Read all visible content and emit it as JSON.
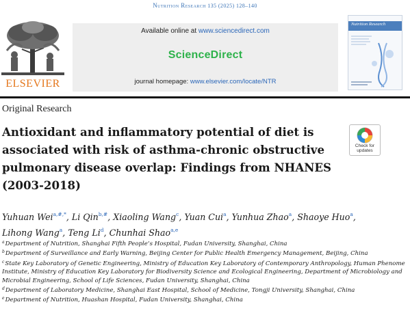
{
  "journal": {
    "name": "Nutrition Research",
    "citation": "135 (2025) 128–140"
  },
  "header": {
    "publisher_logo_text": "ELSEVIER",
    "available_online_prefix": "Available online at ",
    "available_online_link": "www.sciencedirect.com",
    "platform_logo_text": "ScienceDirect",
    "homepage_prefix": "journal homepage: ",
    "homepage_link": "www.elsevier.com/locate/NTR",
    "cover_title": "Nutrition Research"
  },
  "article": {
    "type": "Original Research",
    "title": "Antioxidant and inflammatory potential of diet is associated with risk of asthma-chronic obstructive pulmonary disease overlap: Findings from NHANES (2003-2018)",
    "check_updates_label_1": "Check for",
    "check_updates_label_2": "updates"
  },
  "authors": [
    {
      "name": "Yuhuan Wei",
      "sup": "a,#,*"
    },
    {
      "name": "Li Qin",
      "sup": "b,#"
    },
    {
      "name": "Xiaoling Wang",
      "sup": "c"
    },
    {
      "name": "Yuan Cui",
      "sup": "a"
    },
    {
      "name": "Yunhua Zhao",
      "sup": "a"
    },
    {
      "name": "Shaoye Huo",
      "sup": "a"
    },
    {
      "name": "Lihong Wang",
      "sup": "a"
    },
    {
      "name": "Teng Li",
      "sup": "d"
    },
    {
      "name": "Chunhai Shao",
      "sup": "a,e"
    }
  ],
  "affiliations": [
    {
      "key": "a",
      "text": "Department of Nutrition, Shanghai Fifth People’s Hospital, Fudan University, Shanghai, China"
    },
    {
      "key": "b",
      "text": "Department of Surveillance and Early Warning, Beijing Center for Public Health Emergency Management, Beijing, China"
    },
    {
      "key": "c",
      "text": "State Key Laboratory of Genetic Engineering, Ministry of Education Key Laboratory of Contemporary Anthropology, Human Phenome Institute, Ministry of Education Key Laboratory for Biodiversity Science and Ecological Engineering, Department of Microbiology and Microbial Engineering, School of Life Sciences, Fudan University, Shanghai, China"
    },
    {
      "key": "d",
      "text": "Department of Laboratory Medicine, Shanghai East Hospital, School of Medicine, Tongji University, Shanghai, China"
    },
    {
      "key": "e",
      "text": "Department of Nutrition, Huashan Hospital, Fudan University, Shanghai, China"
    }
  ],
  "colors": {
    "link_blue": "#2a66b8",
    "elsevier_orange": "#e4761b",
    "sciencedirect_green": "#2db24a"
  }
}
